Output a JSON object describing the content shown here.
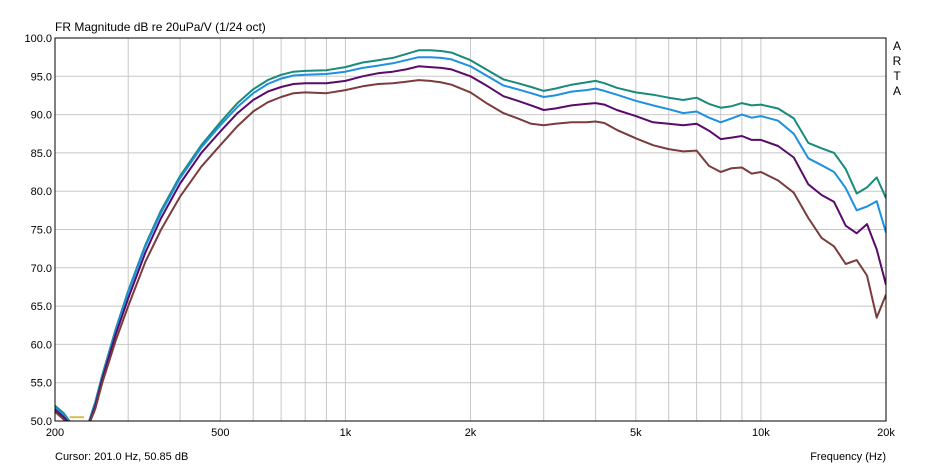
{
  "title": "FR Magnitude dB re 20uPa/V (1/24 oct)",
  "brand_letters": [
    "A",
    "R",
    "T",
    "A"
  ],
  "status": {
    "cursor": "Cursor: 201.0 Hz, 50.85 dB"
  },
  "chart_data": {
    "type": "line",
    "title": "FR Magnitude dB re 20uPa/V (1/24 oct)",
    "xlabel": "Frequency (Hz)",
    "ylabel": "",
    "x_scale": "log",
    "xlim": [
      200,
      20000
    ],
    "ylim": [
      50,
      100
    ],
    "grid": true,
    "x_tick_labels": [
      {
        "value": 200,
        "label": "200"
      },
      {
        "value": 500,
        "label": "500"
      },
      {
        "value": 1000,
        "label": "1k"
      },
      {
        "value": 2000,
        "label": "2k"
      },
      {
        "value": 5000,
        "label": "5k"
      },
      {
        "value": 10000,
        "label": "10k"
      },
      {
        "value": 20000,
        "label": "20k"
      }
    ],
    "x_gridlines": [
      200,
      300,
      400,
      500,
      600,
      700,
      800,
      900,
      1000,
      2000,
      3000,
      4000,
      5000,
      6000,
      7000,
      8000,
      9000,
      10000,
      20000
    ],
    "y_ticks": [
      50.0,
      55.0,
      60.0,
      65.0,
      70.0,
      75.0,
      80.0,
      85.0,
      90.0,
      95.0,
      100.0
    ],
    "y_tick_labels": [
      "50.0",
      "55.0",
      "60.0",
      "65.0",
      "70.0",
      "75.0",
      "80.0",
      "85.0",
      "90.0",
      "95.0",
      "100.0"
    ],
    "series": [
      {
        "color": "#1a8a7a",
        "x": [
          200,
          210,
          220,
          230,
          240,
          250,
          260,
          280,
          300,
          330,
          360,
          400,
          450,
          500,
          550,
          600,
          650,
          700,
          750,
          800,
          900,
          1000,
          1100,
          1200,
          1300,
          1400,
          1500,
          1600,
          1700,
          1800,
          2000,
          2200,
          2400,
          2600,
          2800,
          3000,
          3200,
          3500,
          3800,
          4000,
          4200,
          4500,
          5000,
          5500,
          6000,
          6500,
          7000,
          7500,
          8000,
          8500,
          9000,
          9500,
          10000,
          11000,
          12000,
          13000,
          14000,
          15000,
          16000,
          17000,
          18000,
          19000,
          20000
        ],
        "y": [
          52.0,
          51.0,
          49.5,
          49.0,
          49.5,
          52.5,
          56.0,
          62.0,
          67.0,
          73.0,
          77.5,
          82.0,
          86.0,
          89.0,
          91.5,
          93.3,
          94.5,
          95.2,
          95.6,
          95.7,
          95.8,
          96.2,
          96.8,
          97.1,
          97.4,
          97.9,
          98.4,
          98.4,
          98.3,
          98.1,
          97.1,
          95.8,
          94.6,
          94.1,
          93.6,
          93.1,
          93.4,
          93.9,
          94.2,
          94.4,
          94.1,
          93.5,
          92.9,
          92.6,
          92.2,
          91.9,
          92.2,
          91.4,
          90.9,
          91.1,
          91.5,
          91.2,
          91.3,
          90.8,
          89.5,
          86.3,
          85.6,
          85.0,
          82.9,
          79.7,
          80.5,
          81.8,
          79.1
        ]
      },
      {
        "color": "#1e90e0",
        "x": [
          200,
          210,
          220,
          230,
          240,
          250,
          260,
          280,
          300,
          330,
          360,
          400,
          450,
          500,
          550,
          600,
          650,
          700,
          750,
          800,
          900,
          1000,
          1100,
          1200,
          1300,
          1400,
          1500,
          1600,
          1700,
          1800,
          2000,
          2200,
          2400,
          2600,
          2800,
          3000,
          3200,
          3500,
          3800,
          4000,
          4200,
          4500,
          5000,
          5500,
          6000,
          6500,
          7000,
          7500,
          8000,
          8500,
          9000,
          9500,
          10000,
          11000,
          12000,
          13000,
          14000,
          15000,
          16000,
          17000,
          18000,
          19000,
          20000
        ],
        "y": [
          51.8,
          50.8,
          49.4,
          48.9,
          49.4,
          52.3,
          55.8,
          61.8,
          66.8,
          72.8,
          77.2,
          81.7,
          85.7,
          88.6,
          91.0,
          92.8,
          94.0,
          94.7,
          95.1,
          95.2,
          95.3,
          95.6,
          96.1,
          96.4,
          96.7,
          97.1,
          97.5,
          97.5,
          97.4,
          97.2,
          96.3,
          95.0,
          93.8,
          93.3,
          92.8,
          92.3,
          92.5,
          93.0,
          93.2,
          93.4,
          93.1,
          92.6,
          91.8,
          91.2,
          90.7,
          90.2,
          90.4,
          89.6,
          89.0,
          89.5,
          90.0,
          89.6,
          89.8,
          89.2,
          87.5,
          84.3,
          83.4,
          82.5,
          80.4,
          77.5,
          78.0,
          78.7,
          74.6
        ]
      },
      {
        "color": "#5a0a6a",
        "x": [
          200,
          210,
          220,
          230,
          240,
          250,
          260,
          280,
          300,
          330,
          360,
          400,
          450,
          500,
          550,
          600,
          650,
          700,
          750,
          800,
          900,
          1000,
          1100,
          1200,
          1300,
          1400,
          1500,
          1600,
          1700,
          1800,
          2000,
          2200,
          2400,
          2600,
          2800,
          3000,
          3200,
          3500,
          3800,
          4000,
          4200,
          4500,
          5000,
          5500,
          6000,
          6500,
          7000,
          7500,
          8000,
          8500,
          9000,
          9500,
          10000,
          11000,
          12000,
          13000,
          14000,
          15000,
          16000,
          17000,
          18000,
          19000,
          20000
        ],
        "y": [
          51.5,
          50.5,
          49.3,
          48.8,
          49.3,
          52.0,
          55.5,
          61.3,
          66.0,
          72.0,
          76.5,
          81.0,
          85.0,
          87.8,
          90.2,
          91.9,
          93.0,
          93.6,
          94.0,
          94.1,
          94.1,
          94.4,
          95.0,
          95.4,
          95.6,
          95.9,
          96.3,
          96.2,
          96.1,
          95.9,
          95.0,
          93.7,
          92.4,
          91.8,
          91.2,
          90.6,
          90.8,
          91.2,
          91.4,
          91.5,
          91.3,
          90.6,
          89.8,
          89.0,
          88.8,
          88.6,
          88.8,
          87.9,
          86.8,
          87.0,
          87.2,
          86.7,
          86.7,
          85.9,
          84.4,
          80.9,
          79.5,
          78.6,
          75.5,
          74.5,
          75.7,
          72.4,
          67.8
        ]
      },
      {
        "color": "#7a3c3c",
        "x": [
          200,
          210,
          220,
          230,
          240,
          250,
          260,
          280,
          300,
          330,
          360,
          400,
          450,
          500,
          550,
          600,
          650,
          700,
          750,
          800,
          900,
          1000,
          1100,
          1200,
          1300,
          1400,
          1500,
          1600,
          1700,
          1800,
          2000,
          2200,
          2400,
          2600,
          2800,
          3000,
          3200,
          3500,
          3800,
          4000,
          4200,
          4500,
          5000,
          5500,
          6000,
          6500,
          7000,
          7500,
          8000,
          8500,
          9000,
          9500,
          10000,
          11000,
          12000,
          13000,
          14000,
          15000,
          16000,
          17000,
          18000,
          19000,
          20000
        ],
        "y": [
          51.2,
          50.2,
          49.2,
          48.7,
          49.2,
          51.6,
          55.0,
          60.5,
          65.0,
          70.8,
          75.0,
          79.3,
          83.2,
          86.0,
          88.5,
          90.4,
          91.6,
          92.3,
          92.8,
          92.9,
          92.8,
          93.2,
          93.7,
          94.0,
          94.1,
          94.3,
          94.5,
          94.4,
          94.2,
          93.9,
          92.9,
          91.4,
          90.2,
          89.5,
          88.8,
          88.6,
          88.8,
          89.0,
          89.0,
          89.1,
          88.9,
          88.0,
          86.9,
          86.0,
          85.5,
          85.2,
          85.3,
          83.3,
          82.5,
          83.0,
          83.1,
          82.3,
          82.5,
          81.4,
          79.8,
          76.5,
          73.9,
          72.8,
          70.5,
          71.0,
          69.0,
          63.5,
          66.5
        ]
      },
      {
        "color": "#d4c050",
        "x": [
          217,
          235
        ],
        "y": [
          50.5,
          50.5
        ]
      }
    ]
  }
}
